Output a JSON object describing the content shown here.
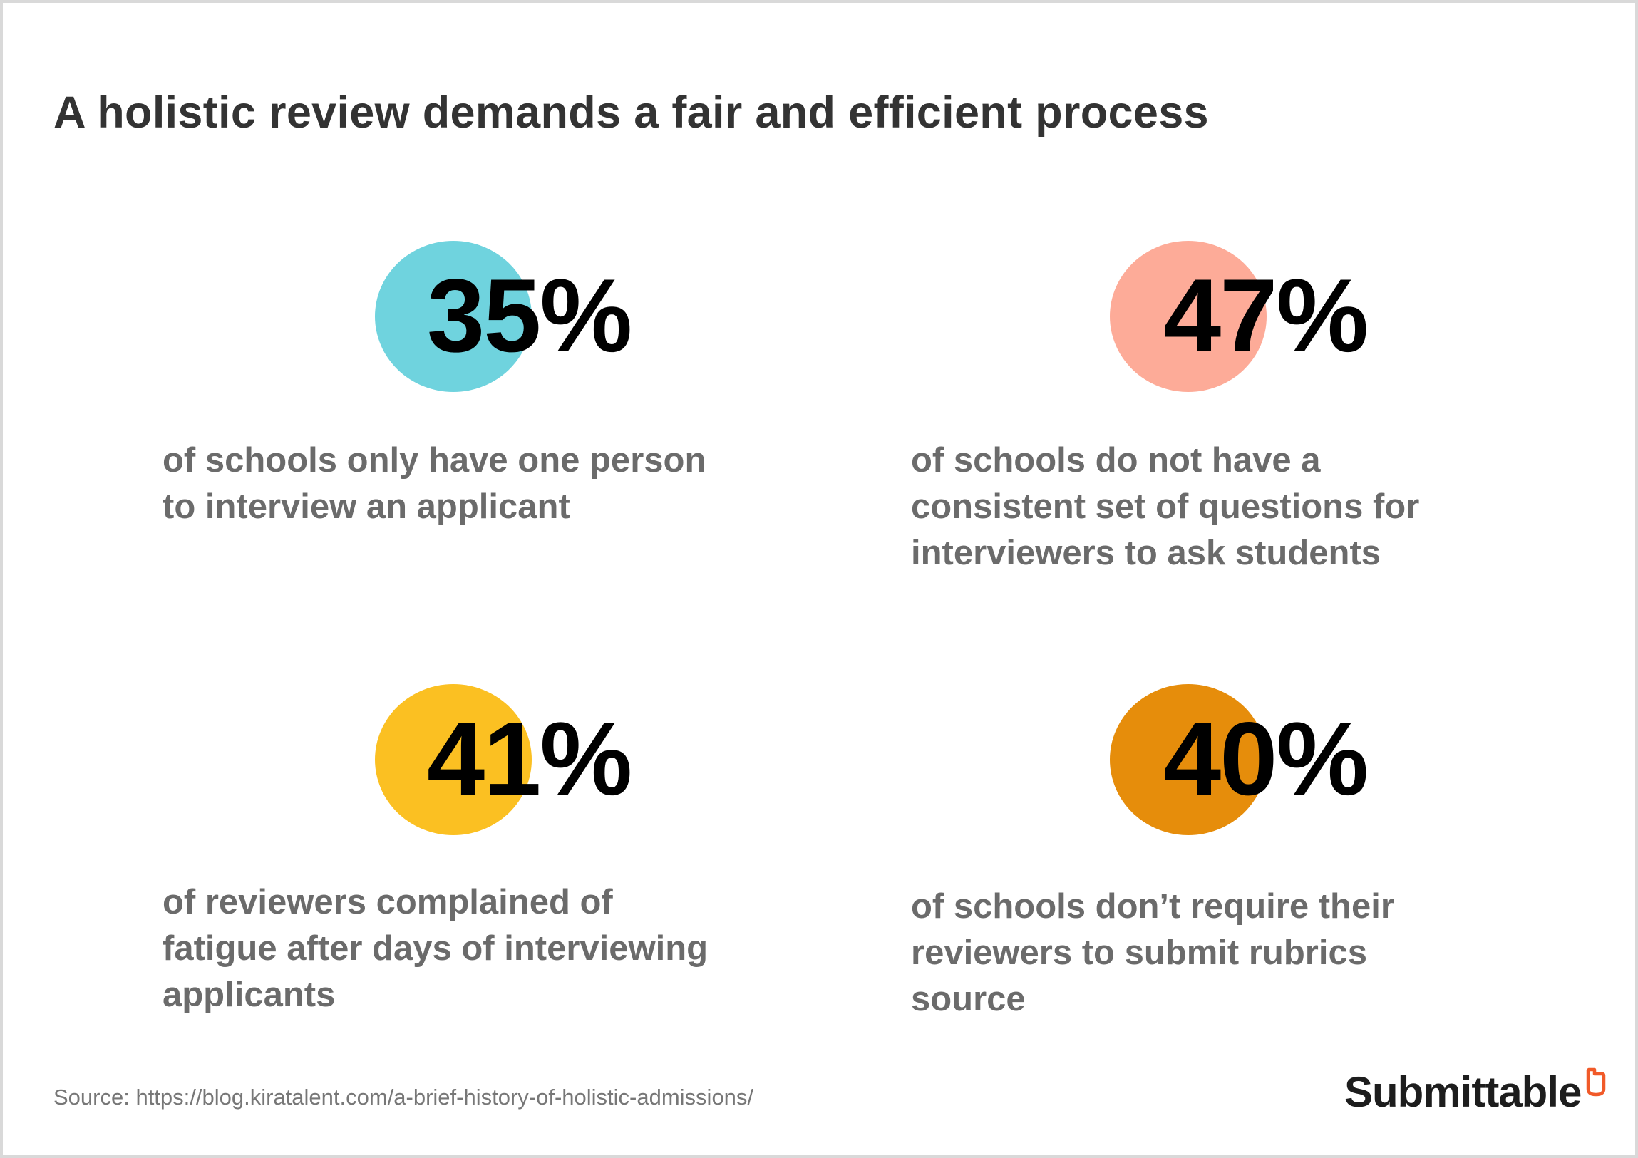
{
  "title": "A holistic review demands a fair and efficient process",
  "stats": [
    {
      "value": "35%",
      "color": "#6fd3de",
      "lines": [
        "of schools only have one person",
        "to interview an applicant"
      ]
    },
    {
      "value": "47%",
      "color": "#fdab98",
      "lines": [
        "of schools do not have a",
        "consistent set of questions for",
        "interviewers to ask students"
      ]
    },
    {
      "value": "41%",
      "color": "#fbc022",
      "lines": [
        "of reviewers complained of",
        "fatigue after days of interviewing",
        "applicants"
      ]
    },
    {
      "value": "40%",
      "color": "#e68d0b",
      "lines": [
        "of schools don’t require their",
        "reviewers to submit rubrics",
        "source"
      ]
    }
  ],
  "source": "Source: https://blog.kiratalent.com/a-brief-history-of-holistic-admissions/",
  "logo": {
    "text": "Submittable",
    "mark_color": "#f15a29",
    "icon": "submittable-logo-icon"
  }
}
